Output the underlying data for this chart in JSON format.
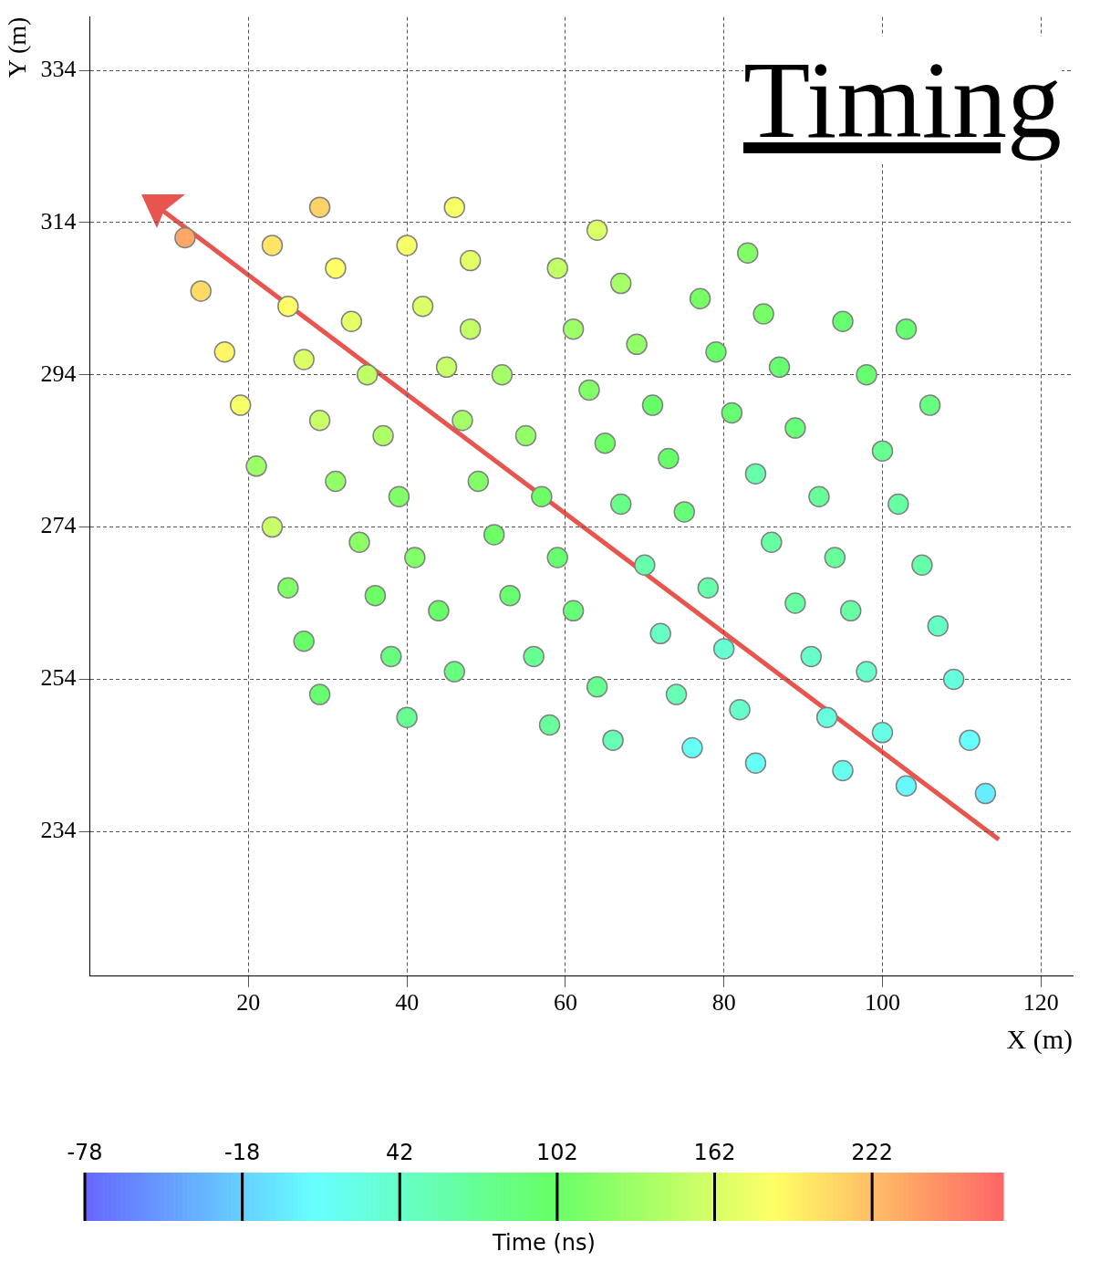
{
  "chart_data": {
    "type": "scatter",
    "title": "Timing",
    "xlabel": "X (m)",
    "ylabel": "Y (m)",
    "clabel": "Time (ns)",
    "x": [
      12,
      29,
      46,
      23,
      31,
      40,
      48,
      14,
      25,
      33,
      42,
      48,
      17,
      27,
      35,
      45,
      52,
      19,
      29,
      37,
      47,
      55,
      21,
      31,
      39,
      49,
      57,
      23,
      34,
      41,
      51,
      59,
      25,
      36,
      44,
      53,
      61,
      27,
      38,
      46,
      56,
      29,
      40,
      58,
      64,
      66,
      64,
      59,
      67,
      61,
      69,
      63,
      71,
      65,
      73,
      67,
      75,
      83,
      77,
      85,
      79,
      87,
      81,
      89,
      84,
      92,
      95,
      103,
      98,
      106,
      100,
      102,
      86,
      94,
      105,
      70,
      78,
      89,
      96,
      107,
      72,
      80,
      91,
      98,
      109,
      74,
      82,
      93,
      100,
      111,
      76,
      84,
      95,
      103,
      113
    ],
    "values": [
      312,
      316,
      316,
      311,
      308,
      311,
      309,
      305,
      303,
      301,
      303,
      300,
      297,
      296,
      294,
      295,
      294,
      290,
      288,
      286,
      288,
      286,
      282,
      280,
      278,
      280,
      278,
      274,
      272,
      270,
      273,
      270,
      266,
      265,
      263,
      265,
      263,
      259,
      257,
      255,
      257,
      252,
      249,
      248,
      253,
      246,
      313,
      308,
      306,
      300,
      298,
      292,
      290,
      285,
      283,
      277,
      276,
      310,
      304,
      302,
      297,
      295,
      289,
      287,
      281,
      278,
      301,
      300,
      294,
      290,
      284,
      277,
      272,
      270,
      269,
      269,
      266,
      264,
      263,
      261,
      260,
      258,
      257,
      255,
      254,
      252,
      250,
      249,
      247,
      246,
      245,
      243,
      242,
      240,
      239
    ],
    "cvalues": [
      235,
      210,
      180,
      200,
      185,
      180,
      170,
      205,
      185,
      170,
      165,
      150,
      190,
      165,
      150,
      155,
      135,
      180,
      155,
      140,
      135,
      125,
      130,
      125,
      115,
      115,
      105,
      155,
      120,
      115,
      105,
      95,
      115,
      105,
      100,
      95,
      90,
      100,
      85,
      85,
      75,
      95,
      75,
      70,
      75,
      55,
      165,
      150,
      135,
      130,
      125,
      115,
      100,
      105,
      100,
      80,
      90,
      115,
      110,
      110,
      100,
      95,
      95,
      90,
      60,
      70,
      95,
      95,
      95,
      85,
      75,
      65,
      65,
      70,
      60,
      60,
      60,
      65,
      65,
      45,
      45,
      35,
      40,
      40,
      30,
      55,
      40,
      30,
      25,
      10,
      15,
      15,
      20,
      5,
      0
    ],
    "marker": "circle",
    "xlim": [
      0,
      124
    ],
    "xticks": [
      20,
      40,
      60,
      80,
      100,
      120
    ],
    "ylim": [
      215,
      341
    ],
    "yticks": [
      234,
      254,
      274,
      294,
      314,
      334
    ],
    "clim": [
      -78,
      272
    ],
    "cticks": [
      -78,
      -18,
      42,
      102,
      162,
      222
    ],
    "grid": true,
    "legend": false
  }
}
